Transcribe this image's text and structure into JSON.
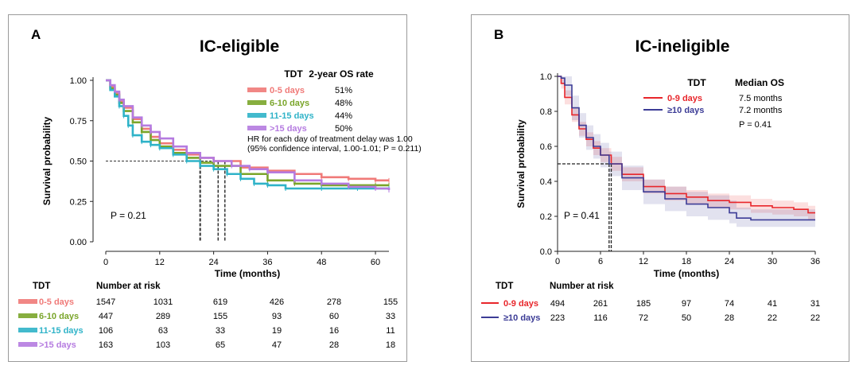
{
  "chart_data": [
    {
      "panel_letter": "A",
      "type": "line",
      "title": "IC-eligible",
      "xlabel": "Time (months)",
      "ylabel": "Survival probability",
      "xlim": [
        0,
        63
      ],
      "ylim": [
        0,
        1
      ],
      "x_ticks": [
        0,
        12,
        24,
        36,
        48,
        60
      ],
      "y_ticks": [
        "0.00",
        "0.25",
        "0.50",
        "0.75",
        "1.00"
      ],
      "legend": {
        "placement": "top-right",
        "header_group": "TDT",
        "header_value": "2-year OS rate",
        "note_line1": "HR for each day of treatment delay was 1.00",
        "note_line2": "(95% confidence interval, 1.00-1.01; P = 0.211)"
      },
      "p_label": "P = 0.21",
      "series": [
        {
          "name": "0-5 days",
          "color": "#f07a78",
          "stat": "51%",
          "x": [
            0,
            1,
            2,
            3,
            4,
            6,
            8,
            10,
            12,
            15,
            18,
            21,
            24,
            30,
            36,
            42,
            48,
            54,
            60,
            63
          ],
          "y": [
            1.0,
            0.96,
            0.92,
            0.87,
            0.83,
            0.76,
            0.7,
            0.65,
            0.61,
            0.57,
            0.54,
            0.52,
            0.5,
            0.46,
            0.44,
            0.42,
            0.4,
            0.39,
            0.38,
            0.38
          ]
        },
        {
          "name": "6-10 days",
          "color": "#7aa52a",
          "stat": "48%",
          "x": [
            0,
            1,
            2,
            3,
            4,
            6,
            8,
            10,
            12,
            15,
            18,
            21,
            24,
            30,
            36,
            42,
            48,
            54,
            60,
            63
          ],
          "y": [
            1.0,
            0.95,
            0.91,
            0.86,
            0.81,
            0.74,
            0.68,
            0.63,
            0.59,
            0.55,
            0.52,
            0.49,
            0.47,
            0.42,
            0.38,
            0.36,
            0.35,
            0.35,
            0.35,
            0.35
          ]
        },
        {
          "name": "11-15 days",
          "color": "#2fb3c8",
          "stat": "44%",
          "x": [
            0,
            1,
            2,
            3,
            4,
            5,
            6,
            8,
            10,
            12,
            15,
            18,
            21,
            24,
            27,
            30,
            33,
            36,
            40,
            48,
            56,
            63
          ],
          "y": [
            1.0,
            0.94,
            0.9,
            0.84,
            0.78,
            0.72,
            0.66,
            0.62,
            0.6,
            0.58,
            0.54,
            0.5,
            0.47,
            0.45,
            0.42,
            0.39,
            0.36,
            0.35,
            0.33,
            0.33,
            0.33,
            0.33
          ]
        },
        {
          "name": ">15 days",
          "color": "#b57be0",
          "stat": "50%",
          "x": [
            0,
            1,
            2,
            3,
            4,
            6,
            8,
            10,
            12,
            15,
            18,
            21,
            24,
            28,
            32,
            36,
            42,
            48,
            54,
            60,
            63
          ],
          "y": [
            1.0,
            0.97,
            0.93,
            0.88,
            0.84,
            0.77,
            0.72,
            0.68,
            0.64,
            0.59,
            0.55,
            0.52,
            0.5,
            0.47,
            0.45,
            0.43,
            0.38,
            0.36,
            0.34,
            0.33,
            0.32
          ]
        }
      ],
      "median_x": [
        21,
        25,
        26.5
      ],
      "risk_table": {
        "group_header": "TDT",
        "header": "Number at risk",
        "rows": [
          {
            "name": "0-5 days",
            "values": [
              "1547",
              "1031",
              "619",
              "426",
              "278",
              "155"
            ]
          },
          {
            "name": "6-10 days",
            "values": [
              "447",
              "289",
              "155",
              "93",
              "60",
              "33"
            ]
          },
          {
            "name": "11-15 days",
            "values": [
              "106",
              "63",
              "33",
              "19",
              "16",
              "11"
            ]
          },
          {
            "name": ">15 days",
            "values": [
              "163",
              "103",
              "65",
              "47",
              "28",
              "18"
            ]
          }
        ]
      }
    },
    {
      "panel_letter": "B",
      "type": "line",
      "title": "IC-ineligible",
      "xlabel": "Time (months)",
      "ylabel": "Survival probability",
      "xlim": [
        0,
        36
      ],
      "ylim": [
        0,
        1
      ],
      "x_ticks": [
        0,
        6,
        12,
        18,
        24,
        30,
        36
      ],
      "y_ticks": [
        "0.0",
        "0.2",
        "0.4",
        "0.6",
        "0.8",
        "1.0"
      ],
      "legend": {
        "placement": "top-right",
        "header_group": "TDT",
        "header_value": "Median OS",
        "note_line1": "P = 0.41"
      },
      "p_label": "P = 0.41",
      "series": [
        {
          "name": "0-9 days",
          "color": "#e8262b",
          "stat": "7.5 months",
          "x": [
            0,
            0.5,
            1,
            2,
            3,
            4,
            5,
            6,
            7.5,
            9,
            12,
            15,
            18,
            21,
            24,
            27,
            30,
            33,
            35,
            36
          ],
          "y": [
            1.0,
            0.96,
            0.88,
            0.78,
            0.7,
            0.64,
            0.59,
            0.55,
            0.5,
            0.44,
            0.37,
            0.33,
            0.31,
            0.29,
            0.28,
            0.26,
            0.25,
            0.24,
            0.22,
            0.22
          ],
          "band_low": [
            1.0,
            0.93,
            0.84,
            0.74,
            0.66,
            0.6,
            0.55,
            0.51,
            0.46,
            0.4,
            0.33,
            0.29,
            0.27,
            0.25,
            0.24,
            0.22,
            0.21,
            0.2,
            0.18,
            0.18
          ],
          "band_high": [
            1.0,
            0.99,
            0.92,
            0.82,
            0.74,
            0.68,
            0.63,
            0.59,
            0.54,
            0.48,
            0.41,
            0.37,
            0.35,
            0.33,
            0.32,
            0.3,
            0.29,
            0.28,
            0.26,
            0.26
          ]
        },
        {
          "name": "≥10 days",
          "color": "#3c3c96",
          "stat": "7.2 months",
          "x": [
            0,
            0.5,
            1,
            2,
            3,
            4,
            5,
            6,
            7.2,
            9,
            12,
            15,
            18,
            21,
            24,
            25,
            27,
            30,
            33,
            36
          ],
          "y": [
            1.0,
            0.99,
            0.95,
            0.82,
            0.72,
            0.65,
            0.6,
            0.55,
            0.5,
            0.42,
            0.34,
            0.3,
            0.27,
            0.25,
            0.22,
            0.19,
            0.18,
            0.18,
            0.18,
            0.18
          ],
          "band_low": [
            1.0,
            0.96,
            0.89,
            0.75,
            0.65,
            0.58,
            0.53,
            0.48,
            0.43,
            0.35,
            0.27,
            0.23,
            0.2,
            0.18,
            0.16,
            0.14,
            0.14,
            0.14,
            0.14,
            0.14
          ],
          "band_high": [
            1.0,
            1.0,
            1.0,
            0.89,
            0.79,
            0.72,
            0.67,
            0.62,
            0.57,
            0.49,
            0.41,
            0.37,
            0.34,
            0.32,
            0.29,
            0.25,
            0.24,
            0.24,
            0.24,
            0.24
          ]
        }
      ],
      "median_x": [
        7.2,
        7.5
      ],
      "risk_table": {
        "group_header": "TDT",
        "header": "Number at risk",
        "rows": [
          {
            "name": "0-9 days",
            "values": [
              "494",
              "261",
              "185",
              "97",
              "74",
              "41",
              "31"
            ]
          },
          {
            "name": "≥10 days",
            "values": [
              "223",
              "116",
              "72",
              "50",
              "28",
              "22",
              "22"
            ]
          }
        ]
      }
    }
  ]
}
